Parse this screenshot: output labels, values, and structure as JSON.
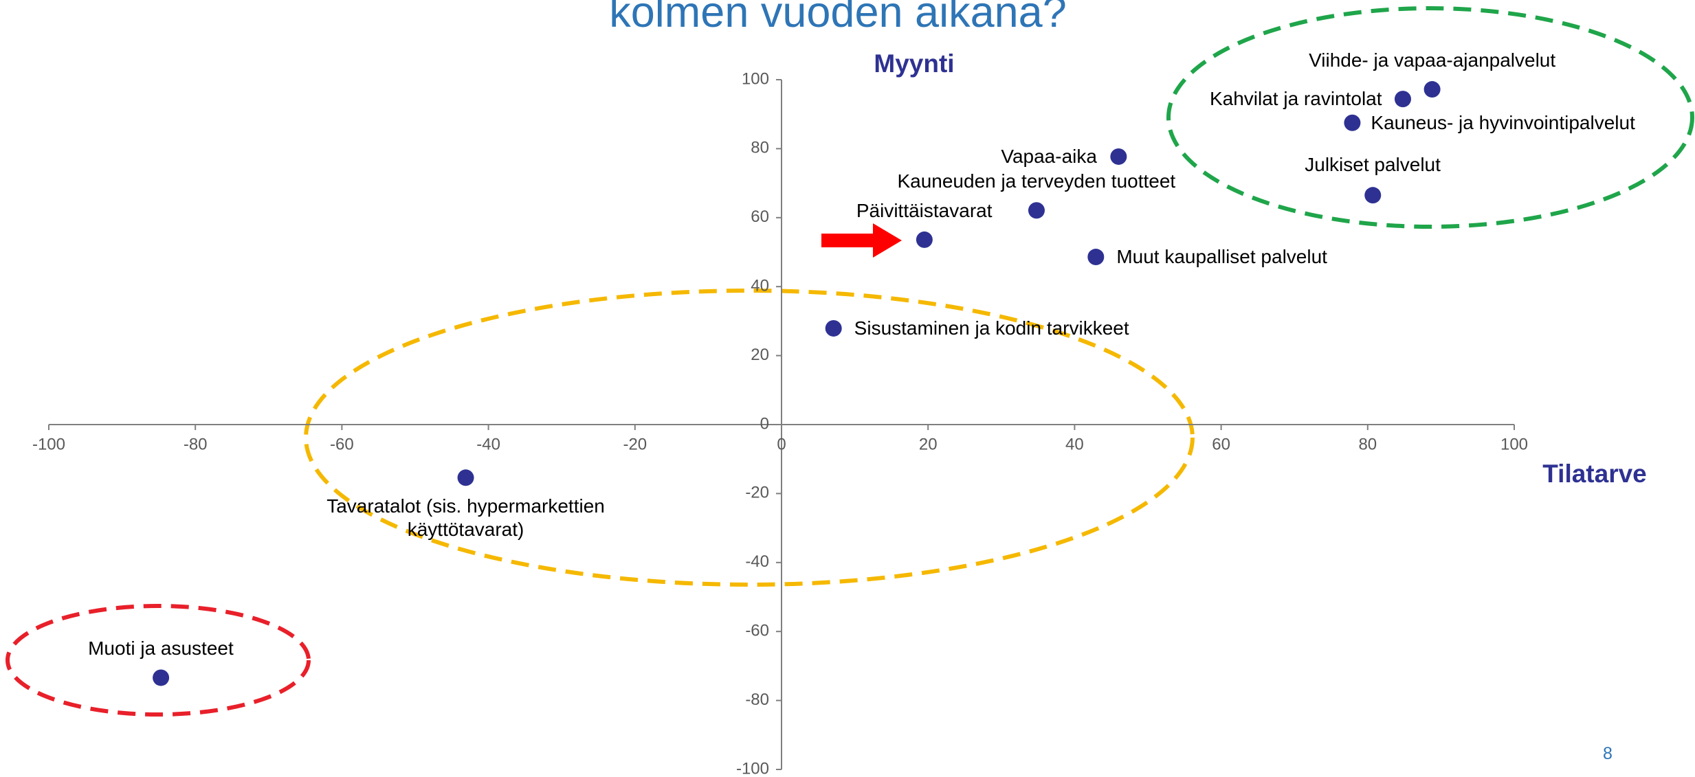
{
  "chart_data": {
    "type": "scatter",
    "title": "kolmen vuoden aikana?",
    "x_label": "Tilatarve",
    "y_label": "Myynti",
    "page_number": "8",
    "labels": [
      "Viihde- ja vapaa-ajanpalvelut",
      "Kahvilat ja ravintolat",
      "Kauneus- ja hyvinvointipalvelut",
      "Julkiset palvelut",
      "Vapaa-aika",
      "Kauneuden ja terveyden tuotteet",
      "Päivittäistavarat",
      "Muut kaupalliset palvelut",
      "Sisustaminen ja kodin tarvikkeet",
      "Tavaratalot (sis. hypermarkettien käyttötavarat)",
      "Muoti ja asusteet"
    ],
    "x": [
      88.8,
      84.8,
      77.9,
      80.7,
      46,
      34.8,
      19.5,
      42.9,
      7.1,
      -43.1,
      -84.7
    ],
    "values": [
      97.2,
      94.4,
      87.5,
      66.5,
      77.7,
      62.1,
      53.6,
      48.6,
      27.9,
      -15.4,
      -73.4
    ],
    "color": "#2e3192",
    "xlim": [
      -100,
      100
    ],
    "ylim": [
      -100,
      100
    ],
    "xticks": [
      -100,
      -80,
      -60,
      -40,
      -20,
      0,
      20,
      40,
      60,
      80,
      100
    ],
    "yticks": [
      -100,
      -80,
      -60,
      -40,
      -20,
      0,
      20,
      40,
      60,
      80,
      100
    ]
  }
}
